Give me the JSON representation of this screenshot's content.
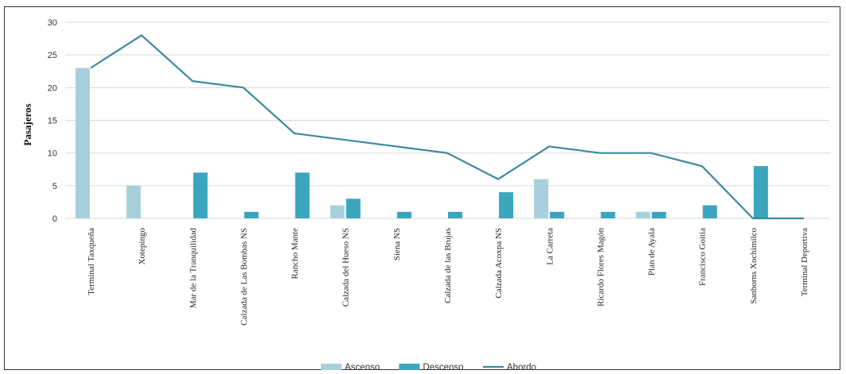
{
  "chart_data": {
    "type": "bar",
    "ylabel": "Pasajeros",
    "xlabel": "",
    "ylim": [
      0,
      30
    ],
    "yticks": [
      0,
      5,
      10,
      15,
      20,
      25,
      30
    ],
    "grid": true,
    "legend_position": "bottom",
    "categories": [
      "Terminal Taxqueña",
      "Xotepingo",
      "Mar de la Tranquilidad",
      "Calzada de Las Bombas NS",
      "Rancho Mante",
      "Calzada del Hueso NS",
      "Siena NS",
      "Calzada de las Brujas",
      "Calzada Acoxpa NS",
      "La Carreta",
      "Ricardo Flores Magón",
      "Plan de Ayala",
      "Francisco Goitia",
      "Sanborns Xochimilco",
      "Terminal Deportiva"
    ],
    "series": [
      {
        "name": "Ascenso",
        "kind": "bar",
        "color": "#a8d0dc",
        "values": [
          23,
          5,
          0,
          0,
          0,
          2,
          0,
          0,
          0,
          6,
          0,
          1,
          0,
          0,
          0
        ]
      },
      {
        "name": "Descenso",
        "kind": "bar",
        "color": "#3aa5bd",
        "values": [
          0,
          0,
          7,
          1,
          7,
          3,
          1,
          1,
          4,
          1,
          1,
          1,
          2,
          8,
          0
        ]
      },
      {
        "name": "Abordo",
        "kind": "line",
        "color": "#3a8a9e",
        "values": [
          23,
          28,
          21,
          20,
          13,
          12,
          11,
          10,
          6,
          11,
          10,
          10,
          8,
          0,
          0
        ]
      }
    ]
  }
}
